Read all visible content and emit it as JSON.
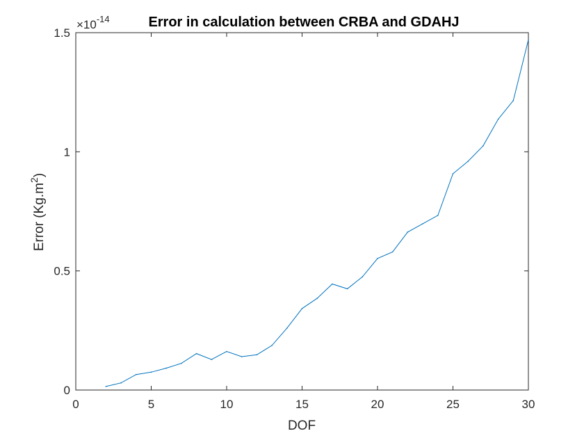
{
  "chart_data": {
    "type": "line",
    "title": "Error in calculation between CRBA and GDAHJ",
    "xlabel": "DOF",
    "ylabel": "Error (Kg.m",
    "ylabel_superscript": "2",
    "ylabel_suffix": ")",
    "exponent_base": "×10",
    "exponent_power": "-14",
    "xlim": [
      0,
      30
    ],
    "ylim": [
      0,
      1.5
    ],
    "x_ticks": [
      0,
      5,
      10,
      15,
      20,
      25,
      30
    ],
    "x_tick_labels": [
      "0",
      "5",
      "10",
      "15",
      "20",
      "25",
      "30"
    ],
    "y_ticks": [
      0,
      0.5,
      1,
      1.5
    ],
    "y_tick_labels": [
      "0",
      "0.5",
      "1",
      "1.5"
    ],
    "grid": false,
    "box": true,
    "line_color": "#0072BD",
    "axis_color": "#262626",
    "series": [
      {
        "x": [
          2,
          3,
          4,
          5,
          6,
          7,
          8,
          9,
          10,
          11,
          12,
          13,
          14,
          15,
          16,
          17,
          18,
          19,
          20,
          21,
          22,
          23,
          24,
          25,
          26,
          27,
          28,
          29,
          30
        ],
        "values": [
          0.015,
          0.03,
          0.065,
          0.075,
          0.092,
          0.112,
          0.153,
          0.128,
          0.162,
          0.14,
          0.148,
          0.187,
          0.26,
          0.342,
          0.385,
          0.445,
          0.425,
          0.475,
          0.552,
          0.58,
          0.663,
          0.698,
          0.733,
          0.908,
          0.96,
          1.025,
          1.137,
          1.215,
          1.47
        ]
      }
    ]
  }
}
